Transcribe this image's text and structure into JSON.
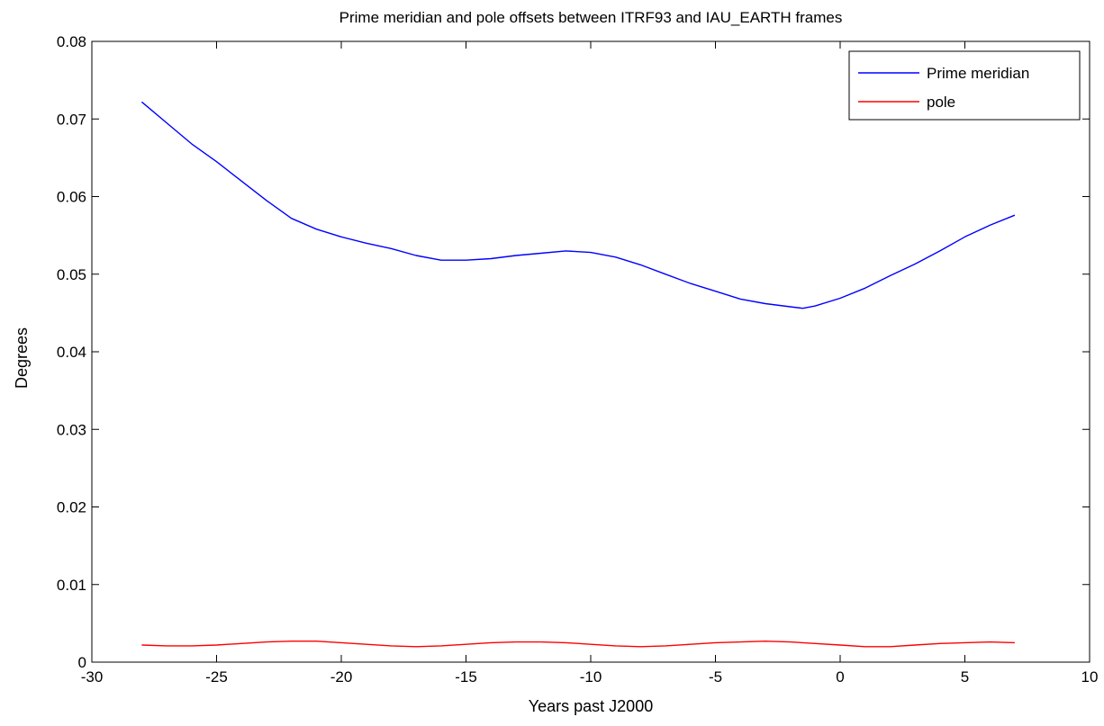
{
  "chart_data": {
    "type": "line",
    "title": "Prime meridian and pole offsets between ITRF93 and IAU_EARTH frames",
    "xlabel": "Years past J2000",
    "ylabel": "Degrees",
    "xlim": [
      -30,
      10
    ],
    "ylim": [
      0,
      0.08
    ],
    "xticks": [
      -30,
      -25,
      -20,
      -15,
      -10,
      -5,
      0,
      5,
      10
    ],
    "xtick_labels": [
      "-30",
      "-25",
      "-20",
      "-15",
      "-10",
      "-5",
      "0",
      "5",
      "10"
    ],
    "yticks": [
      0,
      0.01,
      0.02,
      0.03,
      0.04,
      0.05,
      0.06,
      0.07,
      0.08
    ],
    "ytick_labels": [
      "0",
      "0.01",
      "0.02",
      "0.03",
      "0.04",
      "0.05",
      "0.06",
      "0.07",
      "0.08"
    ],
    "grid": false,
    "legend_position": "top-right",
    "series": [
      {
        "name": "Prime meridian",
        "color": "#0000ff",
        "x": [
          -28,
          -27,
          -26,
          -25,
          -24,
          -23,
          -22,
          -21,
          -20,
          -19,
          -18,
          -17,
          -16,
          -15,
          -14,
          -13,
          -12,
          -11,
          -10,
          -9,
          -8,
          -7,
          -6,
          -5,
          -4,
          -3,
          -2,
          -1.5,
          -1,
          0,
          1,
          2,
          3,
          4,
          5,
          6,
          7
        ],
        "y": [
          0.0722,
          0.0695,
          0.0668,
          0.0645,
          0.062,
          0.0595,
          0.0572,
          0.0558,
          0.0548,
          0.054,
          0.0533,
          0.0524,
          0.0518,
          0.0518,
          0.052,
          0.0524,
          0.0527,
          0.053,
          0.0528,
          0.0522,
          0.0512,
          0.05,
          0.0488,
          0.0478,
          0.0468,
          0.0462,
          0.0458,
          0.0456,
          0.0459,
          0.0469,
          0.0482,
          0.0498,
          0.0513,
          0.053,
          0.0548,
          0.0563,
          0.0576
        ]
      },
      {
        "name": "pole",
        "color": "#ff0000",
        "x": [
          -28,
          -27,
          -26,
          -25,
          -24,
          -23,
          -22,
          -21,
          -20,
          -19,
          -18,
          -17,
          -16,
          -15,
          -14,
          -13,
          -12,
          -11,
          -10,
          -9,
          -8,
          -7,
          -6,
          -5,
          -4,
          -3,
          -2,
          -1,
          0,
          1,
          2,
          3,
          4,
          5,
          6,
          7
        ],
        "y": [
          0.0022,
          0.0021,
          0.0021,
          0.0022,
          0.0024,
          0.0026,
          0.0027,
          0.0027,
          0.0025,
          0.0023,
          0.0021,
          0.002,
          0.0021,
          0.0023,
          0.0025,
          0.0026,
          0.0026,
          0.0025,
          0.0023,
          0.0021,
          0.002,
          0.0021,
          0.0023,
          0.0025,
          0.0026,
          0.0027,
          0.0026,
          0.0024,
          0.0022,
          0.002,
          0.002,
          0.0022,
          0.0024,
          0.0025,
          0.0026,
          0.0025
        ]
      }
    ]
  }
}
